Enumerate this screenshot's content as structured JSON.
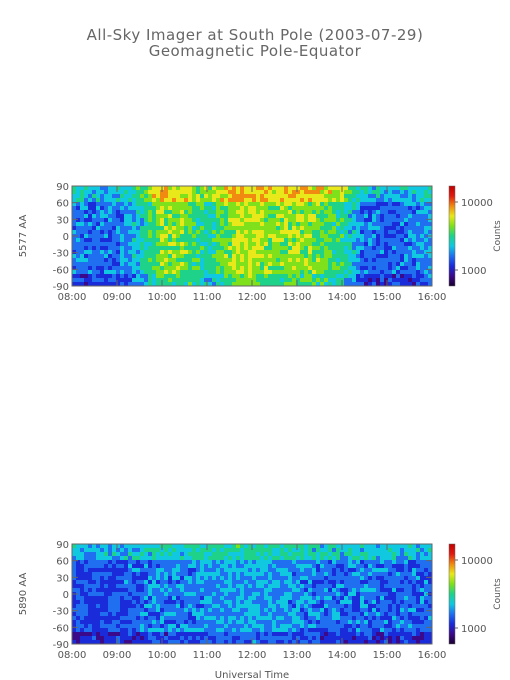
{
  "figure": {
    "title_line1": "All-Sky Imager at South Pole (2003-07-29)",
    "title_line2": "Geomagnetic Pole-Equator",
    "xlabel": "Universal Time"
  },
  "colormap": [
    "#1a0030",
    "#3b0a8a",
    "#1a2bd9",
    "#1f6ff0",
    "#10c8e0",
    "#1ed28a",
    "#7fe01c",
    "#e8e81a",
    "#f08a10",
    "#e01a10",
    "#c00000"
  ],
  "chart_data": [
    {
      "type": "heatmap",
      "ylabel": "5577 AA",
      "x_ticks": [
        "08:00",
        "09:00",
        "10:00",
        "11:00",
        "12:00",
        "13:00",
        "14:00",
        "15:00",
        "16:00"
      ],
      "y_ticks": [
        "90",
        "60",
        "30",
        "0",
        "-30",
        "-60",
        "-90"
      ],
      "xlim": [
        "08:00",
        "16:00"
      ],
      "ylim": [
        -90,
        90
      ],
      "colorbar": {
        "label": "Counts",
        "ticks": [
          "10000",
          "1000"
        ],
        "scale": "log"
      },
      "intensity_profile": {
        "hours": [
          8.0,
          8.5,
          9.0,
          9.5,
          10.0,
          10.5,
          11.0,
          11.5,
          12.0,
          12.5,
          13.0,
          13.5,
          14.0,
          14.5,
          15.0,
          15.5,
          16.0
        ],
        "level": [
          0.32,
          0.28,
          0.3,
          0.4,
          0.62,
          0.58,
          0.45,
          0.62,
          0.66,
          0.6,
          0.62,
          0.58,
          0.5,
          0.28,
          0.26,
          0.3,
          0.35
        ]
      }
    },
    {
      "type": "heatmap",
      "ylabel": "5890 AA",
      "x_ticks": [
        "08:00",
        "09:00",
        "10:00",
        "11:00",
        "12:00",
        "13:00",
        "14:00",
        "15:00",
        "16:00"
      ],
      "y_ticks": [
        "90",
        "60",
        "30",
        "0",
        "-30",
        "-60",
        "-90"
      ],
      "xlim": [
        "08:00",
        "16:00"
      ],
      "ylim": [
        -90,
        90
      ],
      "colorbar": {
        "label": "Counts",
        "ticks": [
          "10000",
          "1000"
        ],
        "scale": "log"
      },
      "intensity_profile": {
        "hours": [
          8.0,
          8.5,
          9.0,
          9.5,
          10.0,
          10.5,
          11.0,
          11.5,
          12.0,
          12.5,
          13.0,
          13.5,
          14.0,
          14.5,
          15.0,
          15.5,
          16.0
        ],
        "level": [
          0.26,
          0.24,
          0.26,
          0.28,
          0.32,
          0.3,
          0.34,
          0.36,
          0.36,
          0.34,
          0.33,
          0.3,
          0.3,
          0.3,
          0.28,
          0.28,
          0.28
        ]
      }
    }
  ]
}
